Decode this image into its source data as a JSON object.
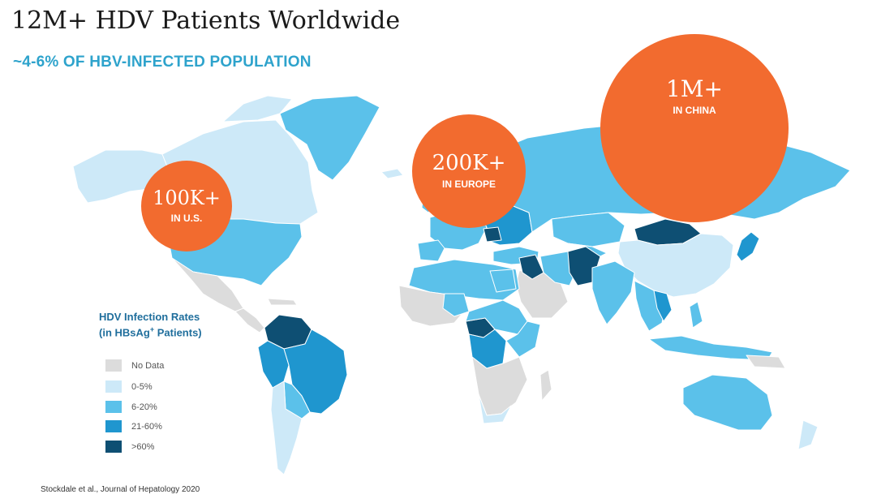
{
  "title": "12M+ HDV Patients Worldwide",
  "subtitle": "~4-6% OF HBV-INFECTED POPULATION",
  "colors": {
    "no_data": "#dcdcdc",
    "rate_0_5": "#cde9f8",
    "rate_6_20": "#5bc1ea",
    "rate_21_60": "#1f96cf",
    "rate_gt_60": "#0e4f73",
    "bubble": "#f26b2f"
  },
  "bubbles": [
    {
      "id": "us",
      "value": "100K+",
      "region": "IN U.S."
    },
    {
      "id": "europe",
      "value": "200K+",
      "region": "IN EUROPE"
    },
    {
      "id": "china",
      "value": "1M+",
      "region": "IN CHINA"
    }
  ],
  "legend": {
    "title_line1": "HDV Infection Rates",
    "title_line2_pre": "(in HBsAg",
    "title_line2_sup": "+",
    "title_line2_post": " Patients)",
    "items": [
      {
        "label": "No Data",
        "color_key": "no_data"
      },
      {
        "label": "0-5%",
        "color_key": "rate_0_5"
      },
      {
        "label": "6-20%",
        "color_key": "rate_6_20"
      },
      {
        "label": "21-60%",
        "color_key": "rate_21_60"
      },
      {
        "label": ">60%",
        "color_key": "rate_gt_60"
      }
    ]
  },
  "source": "Stockdale et al., Journal of Hepatology 2020"
}
